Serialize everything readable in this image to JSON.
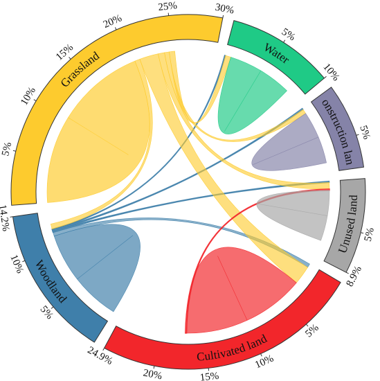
{
  "chart_data": {
    "type": "chord",
    "categories": [
      {
        "name": "Woodland",
        "color": "#3f7faa",
        "total_pct": 14.2,
        "ticks": [
          "5%",
          "10%",
          "14.2%"
        ],
        "tick_values": [
          5,
          10,
          14.2
        ]
      },
      {
        "name": "Grassland",
        "color": "#fdcb2e",
        "total_pct": 30,
        "ticks": [
          "5%",
          "10%",
          "15%",
          "20%",
          "25%",
          "30%"
        ],
        "tick_values": [
          5,
          10,
          15,
          20,
          25,
          30
        ]
      },
      {
        "name": "Water",
        "color": "#1fca86",
        "total_pct": 10,
        "ticks": [
          "5%",
          "10%"
        ],
        "tick_values": [
          5,
          10
        ]
      },
      {
        "name": "Construction land",
        "color": "#8583a8",
        "total_pct": 8,
        "ticks": [
          "5%"
        ],
        "tick_values": [
          5
        ]
      },
      {
        "name": "Unused land",
        "color": "#a7a7a7",
        "total_pct": 8.9,
        "ticks": [
          "5%",
          "8.9%"
        ],
        "tick_values": [
          5,
          8.9
        ]
      },
      {
        "name": "Cultivated land",
        "color": "#f2262b",
        "total_pct": 24.9,
        "ticks": [
          "5%",
          "10%",
          "15%",
          "20%",
          "24.9%"
        ],
        "tick_values": [
          5,
          10,
          15,
          20,
          24.9
        ]
      }
    ],
    "flows": [
      {
        "from": "Woodland",
        "to": "Woodland",
        "value": 11.3
      },
      {
        "from": "Woodland",
        "to": "Cultivated land",
        "value": 0.9
      },
      {
        "from": "Woodland",
        "to": "Unused land",
        "value": 0.3
      },
      {
        "from": "Woodland",
        "to": "Construction land",
        "value": 0.3
      },
      {
        "from": "Woodland",
        "to": "Water",
        "value": 0.2
      },
      {
        "from": "Grassland",
        "to": "Grassland",
        "value": 20.5
      },
      {
        "from": "Grassland",
        "to": "Woodland",
        "value": 1.2
      },
      {
        "from": "Grassland",
        "to": "Cultivated land",
        "value": 4.4
      },
      {
        "from": "Grassland",
        "to": "Unused land",
        "value": 1.5
      },
      {
        "from": "Grassland",
        "to": "Construction land",
        "value": 1.1
      },
      {
        "from": "Grassland",
        "to": "Water",
        "value": 1.3
      },
      {
        "from": "Water",
        "to": "Water",
        "value": 7.6
      },
      {
        "from": "Cultivated land",
        "to": "Cultivated land",
        "value": 14.4
      },
      {
        "from": "Cultivated land",
        "to": "Unused land",
        "value": 0.3
      },
      {
        "from": "Construction land",
        "to": "Construction land",
        "value": 6.2
      },
      {
        "from": "Unused land",
        "to": "Unused land",
        "value": 5.9
      }
    ],
    "title": "",
    "legend": "none"
  }
}
